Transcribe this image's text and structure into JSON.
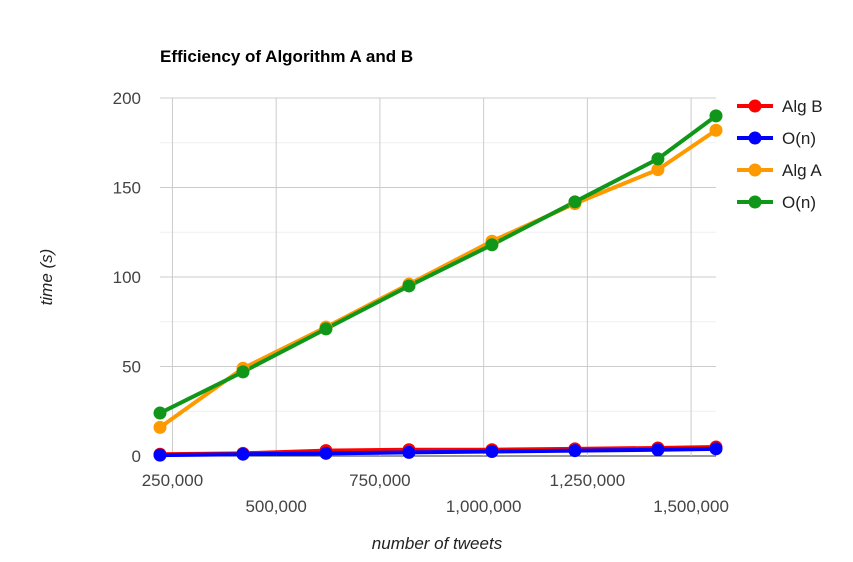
{
  "chart_data": {
    "type": "line",
    "title": "Efficiency of Algorithm A and B",
    "xlabel": "number of tweets",
    "ylabel": "time (s)",
    "xlim": [
      220000,
      1560000
    ],
    "ylim": [
      0,
      200
    ],
    "grid": true,
    "legend_position": "right",
    "x": [
      220000,
      420000,
      620000,
      820000,
      1020000,
      1220000,
      1420000,
      1620000
    ],
    "x_ticks": [
      {
        "value": 250000,
        "label": "250,000",
        "row": "upper"
      },
      {
        "value": 500000,
        "label": "500,000",
        "row": "lower"
      },
      {
        "value": 750000,
        "label": "750,000",
        "row": "upper"
      },
      {
        "value": 1000000,
        "label": "1,000,000",
        "row": "lower"
      },
      {
        "value": 1250000,
        "label": "1,250,000",
        "row": "upper"
      },
      {
        "value": 1500000,
        "label": "1,500,000",
        "row": "lower"
      }
    ],
    "y_ticks": [
      {
        "value": 0,
        "label": "0"
      },
      {
        "value": 50,
        "label": "50"
      },
      {
        "value": 100,
        "label": "100"
      },
      {
        "value": 150,
        "label": "150"
      },
      {
        "value": 200,
        "label": "200"
      }
    ],
    "series": [
      {
        "name": "Alg B",
        "color": "#ff0000",
        "values": [
          1,
          1.5,
          3,
          3.5,
          3.5,
          4,
          4.5,
          5
        ]
      },
      {
        "name": "O(n)",
        "color": "#0000ff",
        "values": [
          0.5,
          1,
          1.5,
          2,
          2.5,
          3,
          3.5,
          4
        ]
      },
      {
        "name": "Alg A",
        "color": "#ff9900",
        "values": [
          16,
          49,
          72,
          96,
          120,
          141,
          160,
          182
        ]
      },
      {
        "name": "O(n)",
        "color": "#109618",
        "values": [
          24,
          47,
          71,
          95,
          118,
          142,
          166,
          190
        ]
      }
    ]
  }
}
